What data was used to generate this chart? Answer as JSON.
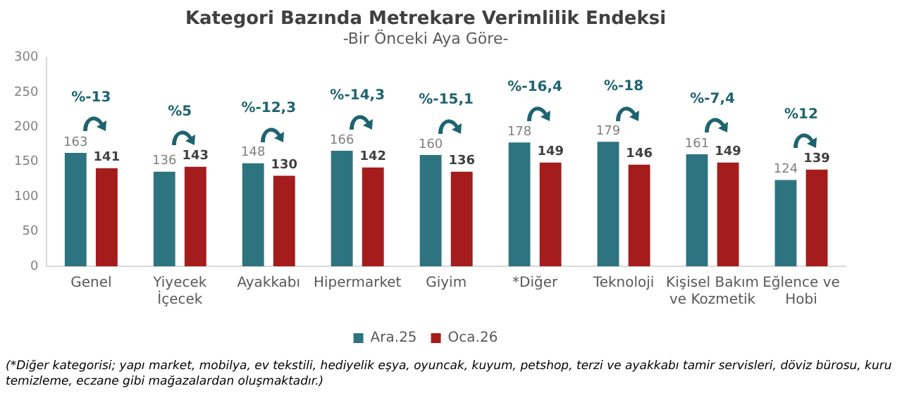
{
  "chart_data": {
    "type": "bar",
    "title": "Kategori Bazında Metrekare Verimlilik Endeksi",
    "subtitle": "-Bir Önceki Aya Göre-",
    "categories": [
      "Genel",
      "Yiyecek İçecek",
      "Ayakkabı",
      "Hipermarket",
      "Giyim",
      "*Diğer",
      "Teknoloji",
      "Kişisel Bakım ve Kozmetik",
      "Eğlence ve Hobi"
    ],
    "series": [
      {
        "name": "Ara.25",
        "color": "#2e7480",
        "values": [
          163,
          136,
          148,
          166,
          160,
          178,
          179,
          161,
          124
        ]
      },
      {
        "name": "Oca.26",
        "color": "#a51c1c",
        "values": [
          141,
          143,
          130,
          142,
          136,
          149,
          146,
          149,
          139
        ]
      }
    ],
    "ylim": [
      0,
      300
    ],
    "yticks": [
      0,
      50,
      100,
      150,
      200,
      250,
      300
    ],
    "grid": false,
    "legend": "bottom",
    "data_labels": true,
    "annotations": [
      "%-13",
      "%5",
      "%-12,3",
      "%-14,3",
      "%-15,1",
      "%-16,4",
      "%-18",
      "%-7,4",
      "%12",
      "(*Diğer kategorisi; yapı market, mobilya, ev tekstili, hediyelik eşya, oyuncak, kuyum, petshop, terzi ve ayakkabı tamir servisleri, döviz bürosu, kuru temizleme, eczane gibi mağazalardan oluşmaktadır.)"
    ]
  }
}
